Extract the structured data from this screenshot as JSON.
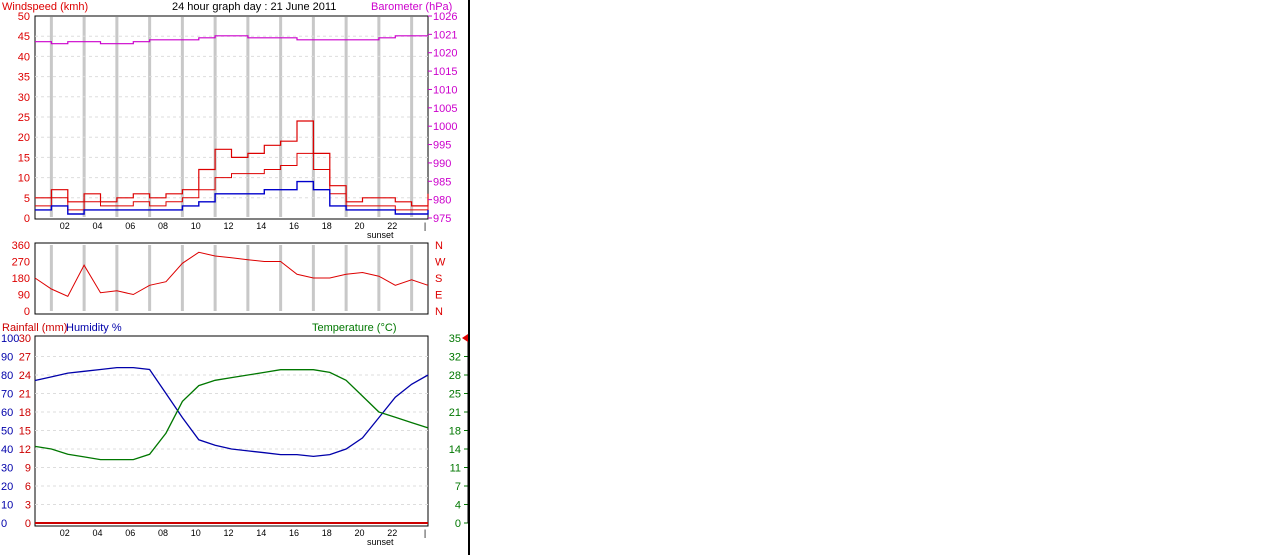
{
  "header": {
    "title": "24 hour graph day : 21 June 2011",
    "left_label": "Windspeed (kmh)",
    "right_label": "Barometer (hPa)"
  },
  "colors": {
    "wind": "#dd0000",
    "gust": "#dd0000",
    "avg": "#0000cc",
    "baro": "#cc00cc",
    "humidity": "#0000aa",
    "temperature": "#007700",
    "rainfall": "#cc0000",
    "axis": "#000000",
    "grid": "#c8c8c8"
  },
  "chart_data": [
    {
      "type": "line",
      "name": "windspeed-barometer",
      "title": "24 hour graph day : 21 June 2011",
      "ylabel_left": "Windspeed (kmh)",
      "ylabel_right": "Barometer (hPa)",
      "x_ticks": [
        "02",
        "04",
        "06",
        "08",
        "10",
        "12",
        "14",
        "16",
        "18",
        "20",
        "22",
        "|"
      ],
      "x_annotation": "sunset",
      "ylim_left": [
        0,
        50
      ],
      "y_ticks_left": [
        "0",
        "5",
        "10",
        "15",
        "20",
        "25",
        "30",
        "35",
        "40",
        "45",
        "50"
      ],
      "ylim_right": [
        975,
        1026
      ],
      "y_ticks_right": [
        "975",
        "980",
        "985",
        "990",
        "995",
        "1000",
        "1005",
        "1010",
        "1015",
        "1020",
        "1021",
        "1026"
      ],
      "grid": true,
      "series": [
        {
          "key": "gust",
          "x": [
            0,
            1,
            2,
            3,
            4,
            5,
            6,
            7,
            8,
            9,
            10,
            11,
            12,
            13,
            14,
            15,
            16,
            17,
            18,
            19,
            20,
            21,
            22,
            23,
            24
          ],
          "y": [
            5,
            7,
            4,
            6,
            4,
            5,
            6,
            5,
            6,
            7,
            12,
            17,
            15,
            16,
            18,
            19,
            24,
            16,
            8,
            4,
            5,
            5,
            4,
            3,
            6
          ]
        },
        {
          "key": "wind",
          "x": [
            0,
            1,
            2,
            3,
            4,
            5,
            6,
            7,
            8,
            9,
            10,
            11,
            12,
            13,
            14,
            15,
            16,
            17,
            18,
            19,
            20,
            21,
            22,
            23,
            24
          ],
          "y": [
            3,
            5,
            2,
            4,
            3,
            3,
            4,
            3,
            4,
            5,
            7,
            10,
            11,
            11,
            12,
            13,
            16,
            12,
            6,
            3,
            3,
            3,
            2,
            2,
            4
          ]
        },
        {
          "key": "avg",
          "x": [
            0,
            1,
            2,
            3,
            4,
            5,
            6,
            7,
            8,
            9,
            10,
            11,
            12,
            13,
            14,
            15,
            16,
            17,
            18,
            19,
            20,
            21,
            22,
            23,
            24
          ],
          "y": [
            2,
            3,
            1,
            2,
            2,
            2,
            2,
            2,
            2,
            3,
            4,
            6,
            6,
            6,
            7,
            7,
            9,
            7,
            3,
            2,
            2,
            2,
            1,
            1,
            2
          ]
        },
        {
          "key": "baro",
          "x": [
            0,
            1,
            2,
            3,
            4,
            5,
            6,
            7,
            8,
            9,
            10,
            11,
            12,
            13,
            14,
            15,
            16,
            17,
            18,
            19,
            20,
            21,
            22,
            23,
            24
          ],
          "y": [
            1019.5,
            1019,
            1019.5,
            1019.5,
            1019,
            1019,
            1019.5,
            1020,
            1020,
            1020,
            1020.5,
            1021,
            1021,
            1020.5,
            1020.5,
            1020.5,
            1020,
            1020,
            1020,
            1020,
            1020,
            1020.5,
            1021,
            1021,
            1021
          ]
        }
      ]
    },
    {
      "type": "line",
      "name": "wind-direction",
      "y_ticks_left": [
        "0",
        "90",
        "180",
        "270",
        "360"
      ],
      "ylim_left": [
        0,
        360
      ],
      "y_ticks_right": [
        "N",
        "E",
        "S",
        "W",
        "N"
      ],
      "series": [
        {
          "key": "direction",
          "x": [
            0,
            1,
            2,
            3,
            4,
            5,
            6,
            7,
            8,
            9,
            10,
            11,
            12,
            13,
            14,
            15,
            16,
            17,
            18,
            19,
            20,
            21,
            22,
            23,
            24
          ],
          "y": [
            180,
            120,
            80,
            250,
            100,
            110,
            90,
            140,
            160,
            260,
            320,
            300,
            290,
            280,
            270,
            270,
            200,
            180,
            180,
            200,
            210,
            190,
            140,
            170,
            140
          ]
        }
      ]
    },
    {
      "type": "line",
      "name": "rain-humidity-temperature",
      "ylabel_left_rain": "Rainfall (mm)",
      "ylabel_left_humidity": "Humidity %",
      "ylabel_right": "Temperature (°C)",
      "y_ticks_rain": [
        "0",
        "3",
        "6",
        "9",
        "12",
        "15",
        "18",
        "21",
        "24",
        "27",
        "30"
      ],
      "y_ticks_humidity": [
        "0",
        "10",
        "20",
        "30",
        "40",
        "50",
        "60",
        "70",
        "80",
        "90",
        "100"
      ],
      "y_ticks_temp": [
        "0",
        "4",
        "7",
        "11",
        "14",
        "18",
        "21",
        "25",
        "28",
        "32",
        "35"
      ],
      "ylim_temp": [
        0,
        35
      ],
      "series": [
        {
          "key": "humidity",
          "x": [
            0,
            1,
            2,
            3,
            4,
            5,
            6,
            7,
            8,
            9,
            10,
            11,
            12,
            13,
            14,
            15,
            16,
            17,
            18,
            19,
            20,
            21,
            22,
            23,
            24
          ],
          "y": [
            77,
            79,
            81,
            82,
            83,
            84,
            84,
            83,
            70,
            57,
            45,
            42,
            40,
            39,
            38,
            37,
            37,
            36,
            37,
            40,
            46,
            57,
            68,
            75,
            80
          ]
        },
        {
          "key": "temperature",
          "x": [
            0,
            1,
            2,
            3,
            4,
            5,
            6,
            7,
            8,
            9,
            10,
            11,
            12,
            13,
            14,
            15,
            16,
            17,
            18,
            19,
            20,
            21,
            22,
            23,
            24
          ],
          "y": [
            14.5,
            14,
            13,
            12.5,
            12,
            12,
            12,
            13,
            17,
            23,
            26,
            27,
            27.5,
            28,
            28.5,
            29,
            29,
            29,
            28.5,
            27,
            24,
            21,
            20,
            19,
            18
          ]
        },
        {
          "key": "rainfall",
          "x": [
            0,
            24
          ],
          "y": [
            0,
            0
          ]
        }
      ],
      "pointer_value": 35
    }
  ]
}
